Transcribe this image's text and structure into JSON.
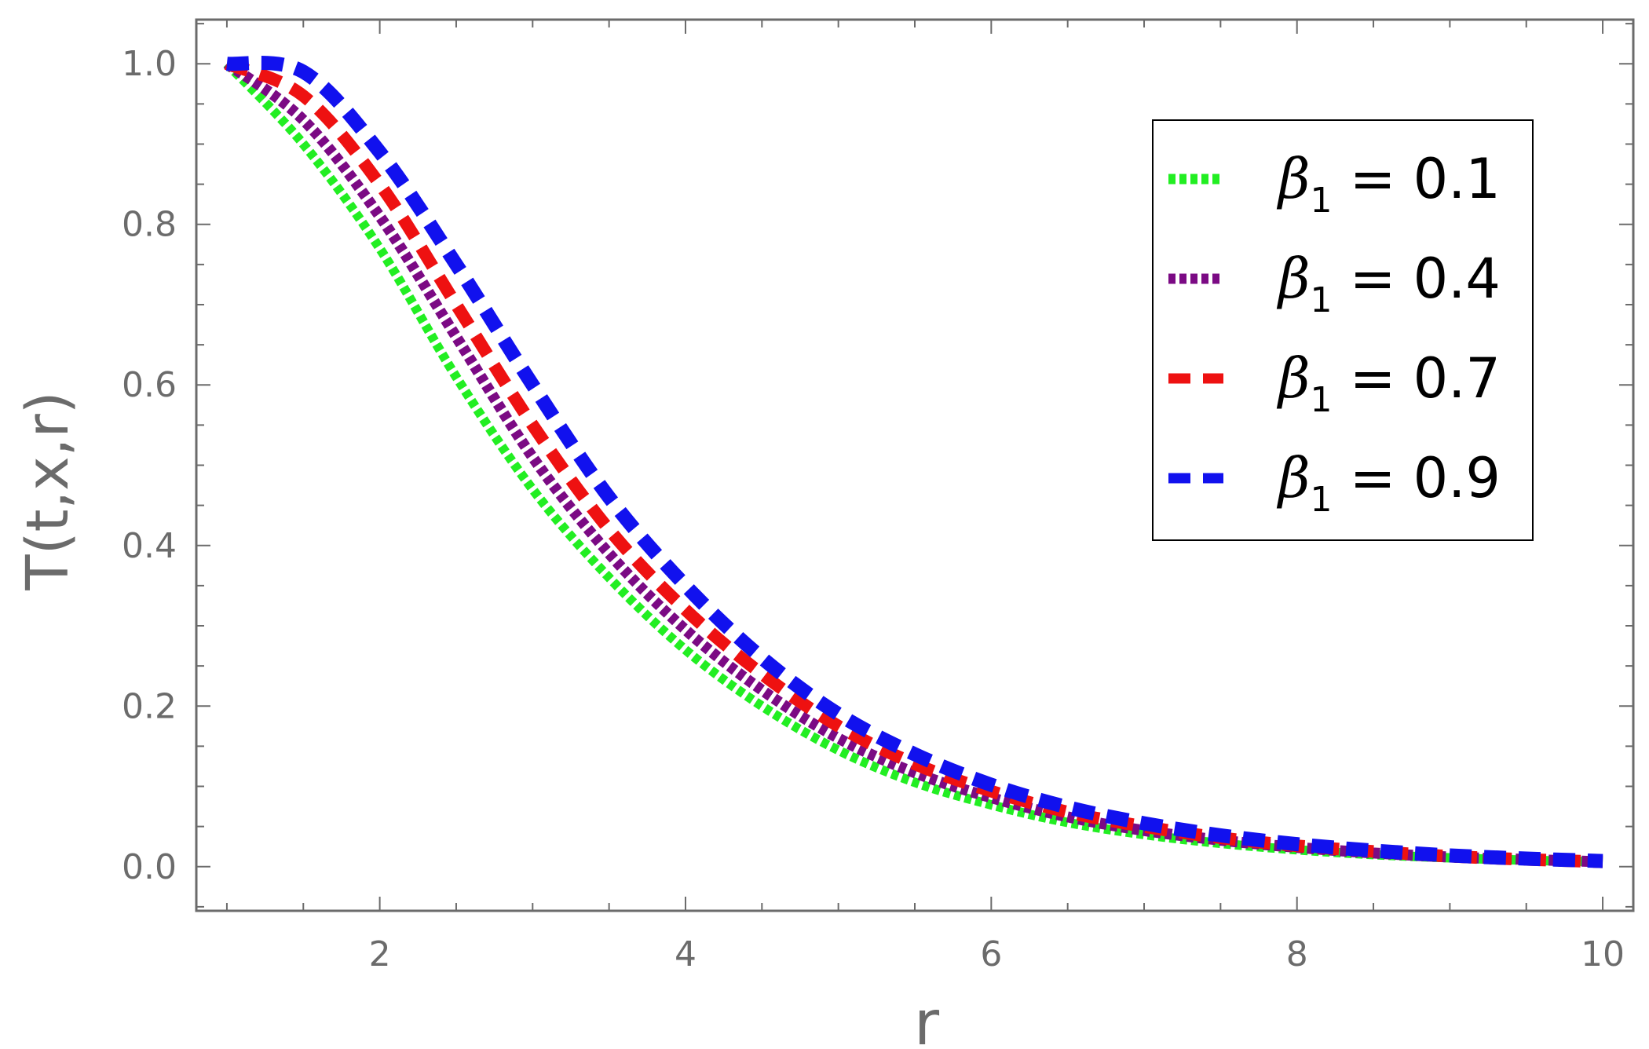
{
  "chart_data": {
    "type": "line",
    "title": "",
    "xlabel": "r",
    "ylabel": "T(t,x,r)",
    "xlim": [
      0.8,
      10.2
    ],
    "ylim": [
      -0.055,
      1.055
    ],
    "xticks": [
      2,
      4,
      6,
      8,
      10
    ],
    "xtick_labels": [
      "2",
      "4",
      "6",
      "8",
      "10"
    ],
    "yticks": [
      0.0,
      0.2,
      0.4,
      0.6,
      0.8,
      1.0
    ],
    "ytick_labels": [
      "0.0",
      "0.2",
      "0.4",
      "0.6",
      "0.8",
      "1.0"
    ],
    "grid": false,
    "legend_position": "top-right",
    "x": [
      1,
      1.5,
      2,
      2.5,
      3,
      3.5,
      4,
      4.5,
      5,
      5.5,
      6,
      6.5,
      7,
      7.5,
      8,
      8.5,
      9,
      9.5,
      10
    ],
    "series": [
      {
        "name": "β1 = 0.1",
        "legend_symbol": "β",
        "legend_subscript": "1",
        "legend_value": " = 0.1",
        "color": "#22ee22",
        "style": "dotted",
        "values": [
          1.0,
          0.9,
          0.77,
          0.61,
          0.47,
          0.36,
          0.27,
          0.2,
          0.145,
          0.105,
          0.077,
          0.055,
          0.04,
          0.029,
          0.021,
          0.015,
          0.011,
          0.008,
          0.006
        ]
      },
      {
        "name": "β1 = 0.4",
        "legend_symbol": "β",
        "legend_subscript": "1",
        "legend_value": " = 0.4",
        "color": "#7b0a84",
        "style": "dotted",
        "values": [
          1.0,
          0.93,
          0.81,
          0.66,
          0.51,
          0.39,
          0.295,
          0.22,
          0.16,
          0.117,
          0.086,
          0.062,
          0.045,
          0.033,
          0.024,
          0.017,
          0.012,
          0.009,
          0.006
        ]
      },
      {
        "name": "β1 = 0.7",
        "legend_symbol": "β",
        "legend_subscript": "1",
        "legend_value": " = 0.7",
        "color": "#ee1111",
        "style": "dashed",
        "values": [
          1.0,
          0.96,
          0.85,
          0.7,
          0.55,
          0.42,
          0.32,
          0.24,
          0.175,
          0.128,
          0.094,
          0.068,
          0.05,
          0.036,
          0.026,
          0.019,
          0.013,
          0.009,
          0.006
        ]
      },
      {
        "name": "β1 = 0.9",
        "legend_symbol": "β",
        "legend_subscript": "1",
        "legend_value": " = 0.9",
        "color": "#1111ee",
        "style": "dashed",
        "values": [
          1.0,
          0.99,
          0.89,
          0.75,
          0.6,
          0.46,
          0.35,
          0.26,
          0.19,
          0.14,
          0.102,
          0.074,
          0.054,
          0.039,
          0.028,
          0.02,
          0.014,
          0.01,
          0.007
        ]
      }
    ]
  }
}
